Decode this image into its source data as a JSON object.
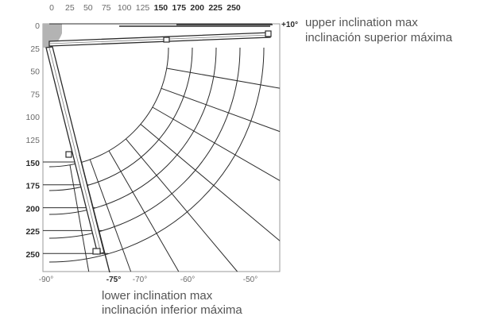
{
  "top_ticks": [
    {
      "label": "0",
      "bold": false
    },
    {
      "label": "25",
      "bold": false
    },
    {
      "label": "50",
      "bold": false
    },
    {
      "label": "75",
      "bold": false
    },
    {
      "label": "100",
      "bold": false
    },
    {
      "label": "125",
      "bold": false
    },
    {
      "label": "150",
      "bold": true
    },
    {
      "label": "175",
      "bold": true
    },
    {
      "label": "200",
      "bold": true
    },
    {
      "label": "225",
      "bold": true
    },
    {
      "label": "250",
      "bold": true
    }
  ],
  "left_ticks": [
    {
      "label": "0",
      "bold": false
    },
    {
      "label": "25",
      "bold": false
    },
    {
      "label": "50",
      "bold": false
    },
    {
      "label": "75",
      "bold": false
    },
    {
      "label": "100",
      "bold": false
    },
    {
      "label": "125",
      "bold": false
    },
    {
      "label": "150",
      "bold": true
    },
    {
      "label": "175",
      "bold": true
    },
    {
      "label": "200",
      "bold": true
    },
    {
      "label": "225",
      "bold": true
    },
    {
      "label": "250",
      "bold": true
    }
  ],
  "bottom_angles": [
    {
      "label": "-90°",
      "bold": false
    },
    {
      "label": "-75°",
      "bold": true
    },
    {
      "label": "-70°",
      "bold": false
    },
    {
      "label": "-60°",
      "bold": false
    },
    {
      "label": "-50°",
      "bold": false
    }
  ],
  "upper": {
    "angle_label": "+10°",
    "line1": "upper inclination max",
    "line2": "inclinación superior máxima"
  },
  "lower": {
    "line1": "lower inclination max",
    "line2": "inclinación inferior máxima"
  },
  "colors": {
    "grid": "#2b2b2b",
    "text": "#6a6a6a",
    "bold_text": "#2a2a2a",
    "pivot": "#b3b3b3",
    "frame": "#8c8c8c"
  }
}
